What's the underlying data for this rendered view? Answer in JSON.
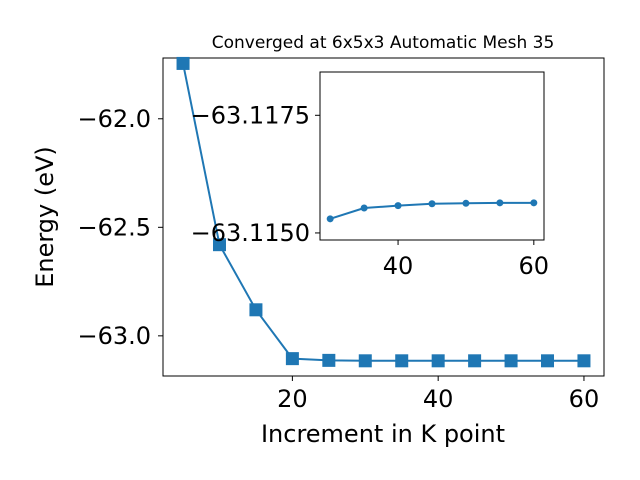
{
  "chart_data": [
    {
      "type": "line",
      "title": "Converged at 6x5x3 Automatic Mesh 35",
      "xlabel": "Increment in K point",
      "ylabel": "Energy (eV)",
      "xlim": [
        2.25,
        62.75
      ],
      "ylim": [
        -63.185,
        -61.72
      ],
      "xticks": [
        20,
        40,
        60
      ],
      "yticks": [
        -62.0,
        -62.5,
        -63.0
      ],
      "ytick_labels": [
        "−62.0",
        "−62.5",
        "−63.0"
      ],
      "grid": false,
      "color": "#1f77b4",
      "marker": "square",
      "series": [
        {
          "x": [
            5,
            10,
            15,
            20,
            25,
            30,
            35,
            40,
            45,
            50,
            55,
            60
          ],
          "y": [
            -61.745,
            -62.58,
            -62.88,
            -63.105,
            -63.113,
            -63.115,
            -63.115,
            -63.115,
            -63.115,
            -63.115,
            -63.115,
            -63.115
          ]
        }
      ]
    },
    {
      "type": "line",
      "title": "",
      "xlabel": "",
      "ylabel": "",
      "xlim": [
        28.5,
        61.5
      ],
      "ylim": [
        -63.11485,
        -63.11842
      ],
      "xticks": [
        40,
        60
      ],
      "yticks": [
        -63.1175,
        -63.115
      ],
      "ytick_labels": [
        "−63.1175",
        "−63.1150"
      ],
      "grid": false,
      "color": "#1f77b4",
      "marker": "circle",
      "series": [
        {
          "x": [
            30,
            35,
            40,
            45,
            50,
            55,
            60
          ],
          "y": [
            -63.1153,
            -63.11553,
            -63.11558,
            -63.11562,
            -63.11563,
            -63.11564,
            -63.11564
          ]
        }
      ]
    }
  ]
}
